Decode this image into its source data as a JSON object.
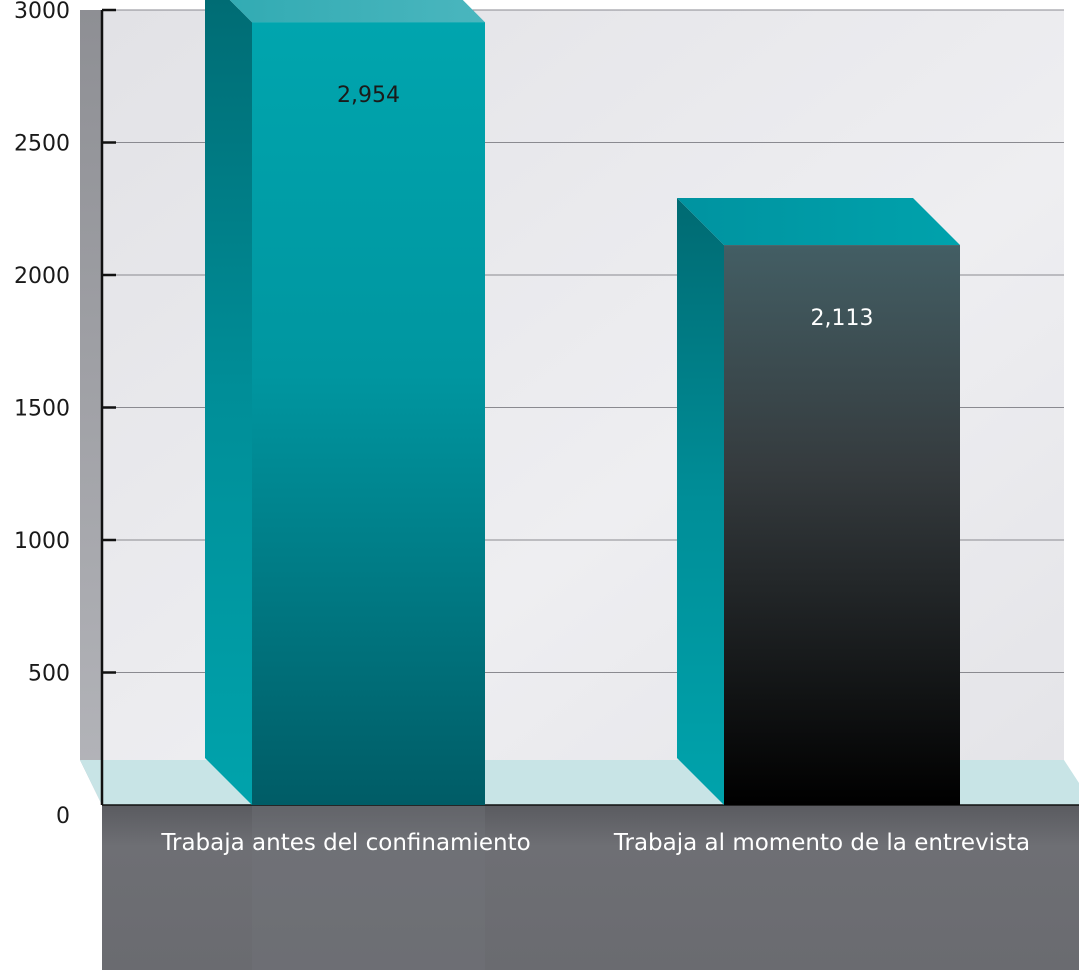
{
  "chart_data": {
    "type": "bar",
    "title": "",
    "xlabel": "",
    "ylabel": "",
    "categories": [
      "Trabaja antes del confinamiento",
      "Trabaja al momento de la entrevista"
    ],
    "values": [
      2954,
      2113
    ],
    "value_labels": [
      "2,954",
      "2,113"
    ],
    "ylim": [
      0,
      3000
    ],
    "yticks": [
      0,
      500,
      1000,
      1500,
      2000,
      2500,
      3000
    ],
    "ytick_labels": [
      "0",
      "500",
      "1000",
      "1500",
      "2000",
      "2500",
      "3000"
    ],
    "grid": true,
    "legend": "none",
    "style": "3d",
    "colors": {
      "bar1_front": "#00a0a8",
      "bar1_front_dark": "#005e68",
      "bar2_front_top": "#405c62",
      "bar2_front_bottom": "#000000",
      "bar_side": "#006c74",
      "bar_top": "#40b2ba",
      "wall": "#e6e6ea",
      "floor_top": "#c8e4e6",
      "floor_front": "#6a6b70",
      "left_wall": "#9a9ba0",
      "value_label_bar1": "#1a1a1a",
      "value_label_bar2": "#ffffff"
    }
  }
}
